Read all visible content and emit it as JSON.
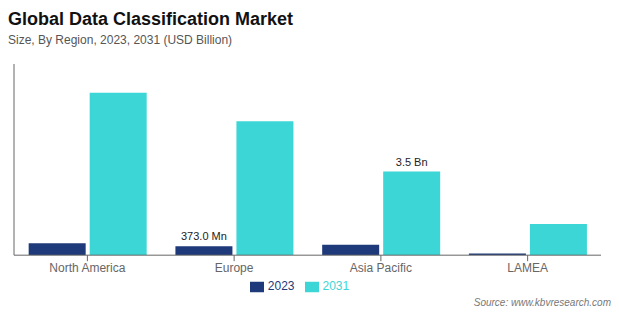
{
  "chart_data": {
    "type": "bar",
    "title": "Global Data Classification Market",
    "subtitle": "Size, By Region, 2023, 2031 (USD Billion)",
    "source": "Source: www.kbvresearch.com",
    "categories": [
      "North America",
      "Europe",
      "Asia Pacific",
      "LAMEA"
    ],
    "series": [
      {
        "name": "2023",
        "color": "#1e3a7a",
        "values": [
          0.5,
          0.373,
          0.44,
          0.07
        ]
      },
      {
        "name": "2031",
        "color": "#3dd6d6",
        "values": [
          6.8,
          5.6,
          3.5,
          1.3
        ]
      }
    ],
    "ylim": [
      0,
      8.0
    ],
    "tick_labels": "x",
    "grid": false,
    "legend": "bottom",
    "annotations": [
      {
        "text": "373.0 Mn",
        "category": "Europe",
        "series": "2023"
      },
      {
        "text": "3.5 Bn",
        "category": "Asia Pacific",
        "series": "2031"
      }
    ]
  }
}
